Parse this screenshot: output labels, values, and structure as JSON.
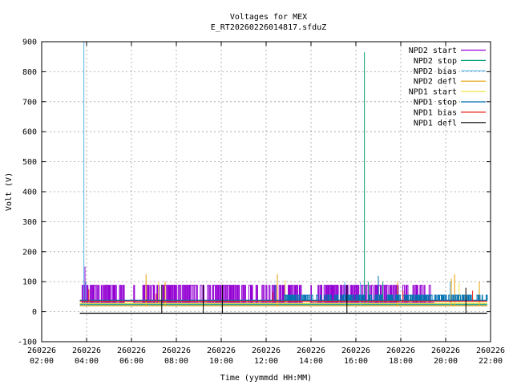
{
  "chart_data": {
    "type": "line",
    "title": "Voltages for MEX",
    "subtitle": "E_RT20260226014817.sfduZ",
    "xlabel": "Time (yymmdd HH:MM)",
    "ylabel": "Volt (V)",
    "xlim": [
      2.0,
      22.0
    ],
    "ylim": [
      -100,
      900
    ],
    "yticks": [
      -100,
      0,
      100,
      200,
      300,
      400,
      500,
      600,
      700,
      800,
      900
    ],
    "xticks": [
      {
        "t": 2,
        "date": "260226",
        "time": "02:00"
      },
      {
        "t": 4,
        "date": "260226",
        "time": "04:00"
      },
      {
        "t": 6,
        "date": "260226",
        "time": "06:00"
      },
      {
        "t": 8,
        "date": "260226",
        "time": "08:00"
      },
      {
        "t": 10,
        "date": "260226",
        "time": "10:00"
      },
      {
        "t": 12,
        "date": "260226",
        "time": "12:00"
      },
      {
        "t": 14,
        "date": "260226",
        "time": "14:00"
      },
      {
        "t": 16,
        "date": "260226",
        "time": "16:00"
      },
      {
        "t": 18,
        "date": "260226",
        "time": "18:00"
      },
      {
        "t": 20,
        "date": "260226",
        "time": "20:00"
      },
      {
        "t": 22,
        "date": "260226",
        "time": "22:00"
      }
    ],
    "grid": true,
    "legend_position": "top-right",
    "series": [
      {
        "name": "NPD2 start",
        "color": "#9400d3",
        "base": 30,
        "high": 88,
        "spikes": [
          [
            3.93,
            150
          ]
        ],
        "active": [
          [
            3.8,
            5.7
          ],
          [
            6.1,
            13.65
          ],
          [
            13.95,
            19.5
          ]
        ]
      },
      {
        "name": "NPD2 stop",
        "color": "#009e73",
        "base": 25,
        "spikes": [
          [
            16.38,
            865
          ],
          [
            16.55,
            100
          ],
          [
            17.2,
            100
          ]
        ],
        "active": [
          [
            3.7,
            21.85
          ]
        ]
      },
      {
        "name": "NPD2 bias",
        "color": "#56b4e9",
        "base": 22,
        "spikes": [
          [
            3.88,
            900
          ],
          [
            3.96,
            100
          ],
          [
            15.5,
            100
          ],
          [
            16.2,
            100
          ],
          [
            20.2,
            100
          ]
        ],
        "active": [
          [
            3.7,
            21.85
          ]
        ]
      },
      {
        "name": "NPD2 defl",
        "color": "#e69f00",
        "base": 20,
        "spikes": [
          [
            6.65,
            125
          ],
          [
            7.5,
            100
          ],
          [
            12.5,
            125
          ],
          [
            17.85,
            100
          ],
          [
            20.25,
            110
          ],
          [
            20.4,
            125
          ],
          [
            21.5,
            100
          ]
        ],
        "active": [
          [
            3.7,
            21.85
          ]
        ]
      },
      {
        "name": "NPD1 start",
        "color": "#f0e442",
        "base": 28,
        "spikes": [
          [
            7.2,
            100
          ],
          [
            12.85,
            105
          ],
          [
            20.6,
            95
          ]
        ],
        "active": [
          [
            3.7,
            21.85
          ]
        ]
      },
      {
        "name": "NPD1 stop",
        "color": "#0072b2",
        "base": 38,
        "high": 55,
        "spikes": [
          [
            17.0,
            120
          ],
          [
            12.4,
            90
          ]
        ],
        "active": [
          [
            3.7,
            21.85
          ]
        ],
        "dense": [
          [
            12.8,
            21.85
          ]
        ]
      },
      {
        "name": "NPD1 bias",
        "color": "#e51e10",
        "base": 35,
        "spikes": [
          [
            4.1,
            75
          ],
          [
            7.1,
            60
          ],
          [
            12.3,
            65
          ],
          [
            18.1,
            70
          ],
          [
            21.2,
            70
          ]
        ],
        "active": [
          [
            3.7,
            21.85
          ]
        ]
      },
      {
        "name": "NPD1 defl",
        "color": "#000000",
        "base": -5,
        "spikes": [
          [
            7.35,
            90
          ],
          [
            9.2,
            90
          ],
          [
            10.05,
            90
          ],
          [
            15.6,
            90
          ],
          [
            20.9,
            80
          ]
        ],
        "active": [
          [
            3.7,
            21.85
          ]
        ]
      }
    ]
  }
}
